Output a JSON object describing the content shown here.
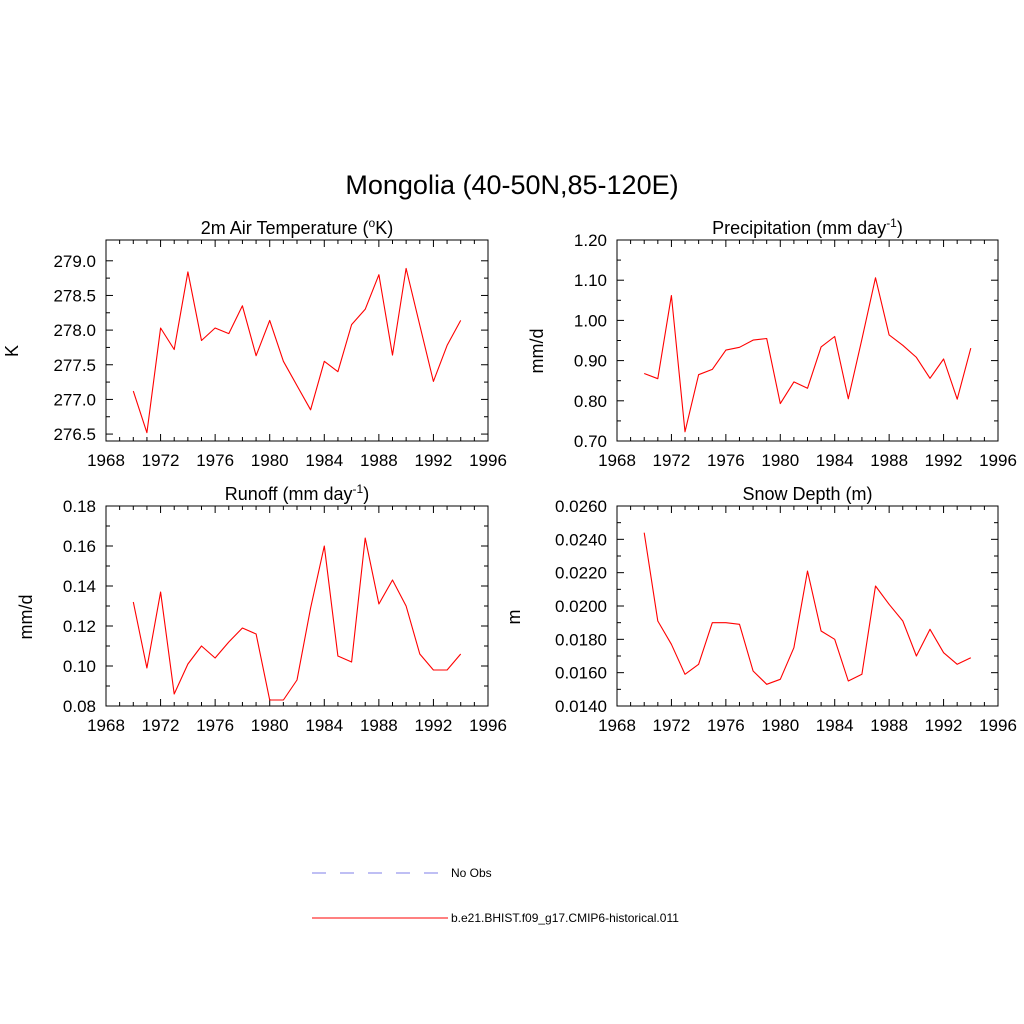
{
  "title": "Mongolia (40-50N,85-120E)",
  "colors": {
    "model": "#ff0000",
    "obs": "#9999ee",
    "axis": "#000000"
  },
  "legend": {
    "obs_label": "No Obs",
    "model_label": "b.e21.BHIST.f09_g17.CMIP6-historical.011"
  },
  "chart_data": [
    {
      "type": "line",
      "title_main": "2m Air Temperature (",
      "title_sup": "o",
      "title_tail": "K)",
      "ylabel": "K",
      "xlim": [
        1968,
        1996
      ],
      "ylim": [
        276.4,
        279.3
      ],
      "xticks": [
        1968,
        1972,
        1976,
        1980,
        1984,
        1988,
        1992,
        1996
      ],
      "xtick_labels": [
        "1968",
        "1972",
        "1976",
        "1980",
        "1984",
        "1988",
        "1992",
        "1996"
      ],
      "yticks": [
        276.5,
        277.0,
        277.5,
        278.0,
        278.5,
        279.0
      ],
      "ytick_labels": [
        "276.5",
        "277.0",
        "277.5",
        "278.0",
        "278.5",
        "279.0"
      ],
      "x": [
        1970,
        1971,
        1972,
        1973,
        1974,
        1975,
        1976,
        1977,
        1978,
        1979,
        1980,
        1981,
        1982,
        1983,
        1984,
        1985,
        1986,
        1987,
        1988,
        1989,
        1990,
        1991,
        1992,
        1993,
        1994
      ],
      "series": [
        {
          "name": "b.e21.BHIST.f09_g17.CMIP6-historical.011",
          "values": [
            277.12,
            276.52,
            278.03,
            277.72,
            278.84,
            277.85,
            278.03,
            277.95,
            278.35,
            277.63,
            278.14,
            277.55,
            277.2,
            276.85,
            277.55,
            277.4,
            278.08,
            278.3,
            278.8,
            277.64,
            278.89,
            278.07,
            277.26,
            277.78,
            278.14
          ]
        }
      ]
    },
    {
      "type": "line",
      "title_main": "Precipitation (mm day",
      "title_sup": "-1",
      "title_tail": ")",
      "ylabel": "mm/d",
      "xlim": [
        1968,
        1996
      ],
      "ylim": [
        0.7,
        1.2
      ],
      "xticks": [
        1968,
        1972,
        1976,
        1980,
        1984,
        1988,
        1992,
        1996
      ],
      "xtick_labels": [
        "1968",
        "1972",
        "1976",
        "1980",
        "1984",
        "1988",
        "1992",
        "1996"
      ],
      "yticks": [
        0.7,
        0.8,
        0.9,
        1.0,
        1.1,
        1.2
      ],
      "ytick_labels": [
        "0.70",
        "0.80",
        "0.90",
        "1.00",
        "1.10",
        "1.20"
      ],
      "x": [
        1970,
        1971,
        1972,
        1973,
        1974,
        1975,
        1976,
        1977,
        1978,
        1979,
        1980,
        1981,
        1982,
        1983,
        1984,
        1985,
        1986,
        1987,
        1988,
        1989,
        1990,
        1991,
        1992,
        1993,
        1994
      ],
      "series": [
        {
          "name": "b.e21.BHIST.f09_g17.CMIP6-historical.011",
          "values": [
            0.868,
            0.855,
            1.062,
            0.723,
            0.865,
            0.878,
            0.926,
            0.933,
            0.951,
            0.955,
            0.793,
            0.847,
            0.831,
            0.934,
            0.96,
            0.805,
            0.953,
            1.106,
            0.964,
            0.938,
            0.908,
            0.856,
            0.904,
            0.804,
            0.931
          ]
        }
      ]
    },
    {
      "type": "line",
      "title_main": "Runoff (mm day",
      "title_sup": "-1",
      "title_tail": ")",
      "ylabel": "mm/d",
      "xlim": [
        1968,
        1996
      ],
      "ylim": [
        0.08,
        0.18
      ],
      "xticks": [
        1968,
        1972,
        1976,
        1980,
        1984,
        1988,
        1992,
        1996
      ],
      "xtick_labels": [
        "1968",
        "1972",
        "1976",
        "1980",
        "1984",
        "1988",
        "1992",
        "1996"
      ],
      "yticks": [
        0.08,
        0.1,
        0.12,
        0.14,
        0.16,
        0.18
      ],
      "ytick_labels": [
        "0.08",
        "0.10",
        "0.12",
        "0.14",
        "0.16",
        "0.18"
      ],
      "x": [
        1970,
        1971,
        1972,
        1973,
        1974,
        1975,
        1976,
        1977,
        1978,
        1979,
        1980,
        1981,
        1982,
        1983,
        1984,
        1985,
        1986,
        1987,
        1988,
        1989,
        1990,
        1991,
        1992,
        1993,
        1994
      ],
      "series": [
        {
          "name": "b.e21.BHIST.f09_g17.CMIP6-historical.011",
          "values": [
            0.132,
            0.099,
            0.137,
            0.086,
            0.101,
            0.11,
            0.104,
            0.112,
            0.119,
            0.116,
            0.083,
            0.083,
            0.093,
            0.129,
            0.16,
            0.105,
            0.102,
            0.164,
            0.131,
            0.143,
            0.13,
            0.106,
            0.098,
            0.098,
            0.106
          ]
        }
      ]
    },
    {
      "type": "line",
      "title_main": "Snow Depth (m)",
      "title_sup": "",
      "title_tail": "",
      "ylabel": "m",
      "xlim": [
        1968,
        1996
      ],
      "ylim": [
        0.014,
        0.026
      ],
      "xticks": [
        1968,
        1972,
        1976,
        1980,
        1984,
        1988,
        1992,
        1996
      ],
      "xtick_labels": [
        "1968",
        "1972",
        "1976",
        "1980",
        "1984",
        "1988",
        "1992",
        "1996"
      ],
      "yticks": [
        0.014,
        0.016,
        0.018,
        0.02,
        0.022,
        0.024,
        0.026
      ],
      "ytick_labels": [
        "0.0140",
        "0.0160",
        "0.0180",
        "0.0200",
        "0.0220",
        "0.0240",
        "0.0260"
      ],
      "x": [
        1970,
        1971,
        1972,
        1973,
        1974,
        1975,
        1976,
        1977,
        1978,
        1979,
        1980,
        1981,
        1982,
        1983,
        1984,
        1985,
        1986,
        1987,
        1988,
        1989,
        1990,
        1991,
        1992,
        1993,
        1994
      ],
      "series": [
        {
          "name": "b.e21.BHIST.f09_g17.CMIP6-historical.011",
          "values": [
            0.0244,
            0.0191,
            0.0177,
            0.0159,
            0.0165,
            0.019,
            0.019,
            0.0189,
            0.0161,
            0.0153,
            0.0156,
            0.0175,
            0.0221,
            0.0185,
            0.018,
            0.0155,
            0.0159,
            0.0212,
            0.0201,
            0.0191,
            0.017,
            0.0186,
            0.0172,
            0.0165,
            0.0169
          ]
        }
      ]
    }
  ]
}
